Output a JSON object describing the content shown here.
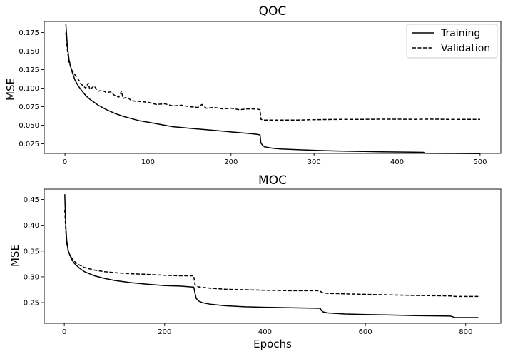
{
  "chart_data": [
    {
      "type": "line",
      "title": "QOC",
      "xlabel": "",
      "ylabel": "MSE",
      "xlim": [
        -25,
        525
      ],
      "ylim": [
        0.012,
        0.19
      ],
      "xticks": [
        0,
        100,
        200,
        300,
        400,
        500
      ],
      "yticks": [
        0.025,
        0.05,
        0.075,
        0.1,
        0.125,
        0.15,
        0.175
      ],
      "ytick_labels": [
        "0.025",
        "0.050",
        "0.075",
        "0.100",
        "0.125",
        "0.150",
        "0.175"
      ],
      "legend": {
        "placement": "top-right",
        "entries": [
          "Training",
          "Validation"
        ]
      },
      "grid": false,
      "series": [
        {
          "name": "Training",
          "style": "solid",
          "x": [
            1,
            3,
            5,
            8,
            12,
            16,
            20,
            25,
            30,
            40,
            50,
            60,
            70,
            80,
            90,
            100,
            110,
            120,
            130,
            140,
            150,
            160,
            170,
            180,
            190,
            200,
            210,
            220,
            230,
            235,
            236,
            238,
            240,
            245,
            250,
            260,
            270,
            280,
            300,
            320,
            340,
            360,
            380,
            400,
            420,
            432,
            434,
            440,
            460,
            480,
            500
          ],
          "y": [
            0.187,
            0.155,
            0.138,
            0.124,
            0.111,
            0.103,
            0.097,
            0.09,
            0.085,
            0.077,
            0.071,
            0.066,
            0.062,
            0.059,
            0.056,
            0.054,
            0.052,
            0.05,
            0.048,
            0.047,
            0.046,
            0.045,
            0.044,
            0.043,
            0.042,
            0.041,
            0.04,
            0.039,
            0.038,
            0.037,
            0.026,
            0.023,
            0.021,
            0.02,
            0.019,
            0.018,
            0.0175,
            0.017,
            0.0162,
            0.0155,
            0.015,
            0.0146,
            0.0142,
            0.0139,
            0.0136,
            0.0134,
            0.0122,
            0.0121,
            0.012,
            0.0119,
            0.0118
          ]
        },
        {
          "name": "Validation",
          "style": "dashed",
          "x": [
            1,
            3,
            5,
            8,
            12,
            16,
            20,
            25,
            28,
            30,
            35,
            40,
            45,
            50,
            55,
            60,
            65,
            68,
            70,
            75,
            80,
            90,
            100,
            110,
            120,
            130,
            140,
            150,
            160,
            165,
            170,
            180,
            190,
            200,
            210,
            220,
            230,
            235,
            236,
            240,
            260,
            280,
            300,
            320,
            340,
            360,
            380,
            400,
            420,
            440,
            460,
            480,
            500
          ],
          "y": [
            0.175,
            0.15,
            0.135,
            0.125,
            0.118,
            0.112,
            0.105,
            0.1,
            0.107,
            0.098,
            0.103,
            0.096,
            0.097,
            0.094,
            0.095,
            0.09,
            0.088,
            0.096,
            0.086,
            0.088,
            0.083,
            0.082,
            0.081,
            0.078,
            0.079,
            0.076,
            0.077,
            0.075,
            0.074,
            0.078,
            0.073,
            0.074,
            0.072,
            0.073,
            0.071,
            0.072,
            0.072,
            0.071,
            0.058,
            0.057,
            0.057,
            0.057,
            0.0575,
            0.0578,
            0.058,
            0.058,
            0.0582,
            0.0582,
            0.058,
            0.0583,
            0.058,
            0.058,
            0.058
          ]
        }
      ]
    },
    {
      "type": "line",
      "title": "MOC",
      "xlabel": "Epochs",
      "ylabel": "MSE",
      "xlim": [
        -40,
        870
      ],
      "ylim": [
        0.21,
        0.47
      ],
      "xticks": [
        0,
        200,
        400,
        600,
        800
      ],
      "yticks": [
        0.25,
        0.3,
        0.35,
        0.4,
        0.45
      ],
      "ytick_labels": [
        "0.25",
        "0.30",
        "0.35",
        "0.40",
        "0.45"
      ],
      "grid": false,
      "series": [
        {
          "name": "Training",
          "style": "solid",
          "x": [
            1,
            3,
            5,
            8,
            12,
            16,
            20,
            30,
            40,
            60,
            80,
            100,
            130,
            160,
            200,
            230,
            258,
            260,
            263,
            268,
            275,
            290,
            320,
            360,
            400,
            450,
            510,
            512,
            516,
            525,
            560,
            600,
            650,
            700,
            770,
            776,
            778,
            800,
            825
          ],
          "y": [
            0.46,
            0.4,
            0.37,
            0.35,
            0.34,
            0.332,
            0.326,
            0.317,
            0.31,
            0.302,
            0.297,
            0.293,
            0.289,
            0.286,
            0.283,
            0.282,
            0.28,
            0.27,
            0.258,
            0.253,
            0.25,
            0.247,
            0.244,
            0.242,
            0.241,
            0.24,
            0.239,
            0.235,
            0.232,
            0.23,
            0.228,
            0.227,
            0.226,
            0.225,
            0.224,
            0.222,
            0.221,
            0.221,
            0.221
          ]
        },
        {
          "name": "Validation",
          "style": "dashed",
          "x": [
            1,
            3,
            5,
            8,
            12,
            16,
            20,
            30,
            40,
            60,
            80,
            100,
            130,
            160,
            200,
            230,
            258,
            260,
            263,
            270,
            290,
            320,
            360,
            400,
            450,
            505,
            510,
            515,
            525,
            560,
            600,
            650,
            700,
            770,
            780,
            800,
            825
          ],
          "y": [
            0.43,
            0.39,
            0.365,
            0.35,
            0.34,
            0.335,
            0.33,
            0.323,
            0.318,
            0.313,
            0.31,
            0.308,
            0.306,
            0.305,
            0.303,
            0.302,
            0.302,
            0.286,
            0.282,
            0.28,
            0.278,
            0.276,
            0.275,
            0.274,
            0.273,
            0.273,
            0.272,
            0.269,
            0.268,
            0.267,
            0.266,
            0.265,
            0.264,
            0.263,
            0.262,
            0.262,
            0.262
          ]
        }
      ]
    }
  ]
}
